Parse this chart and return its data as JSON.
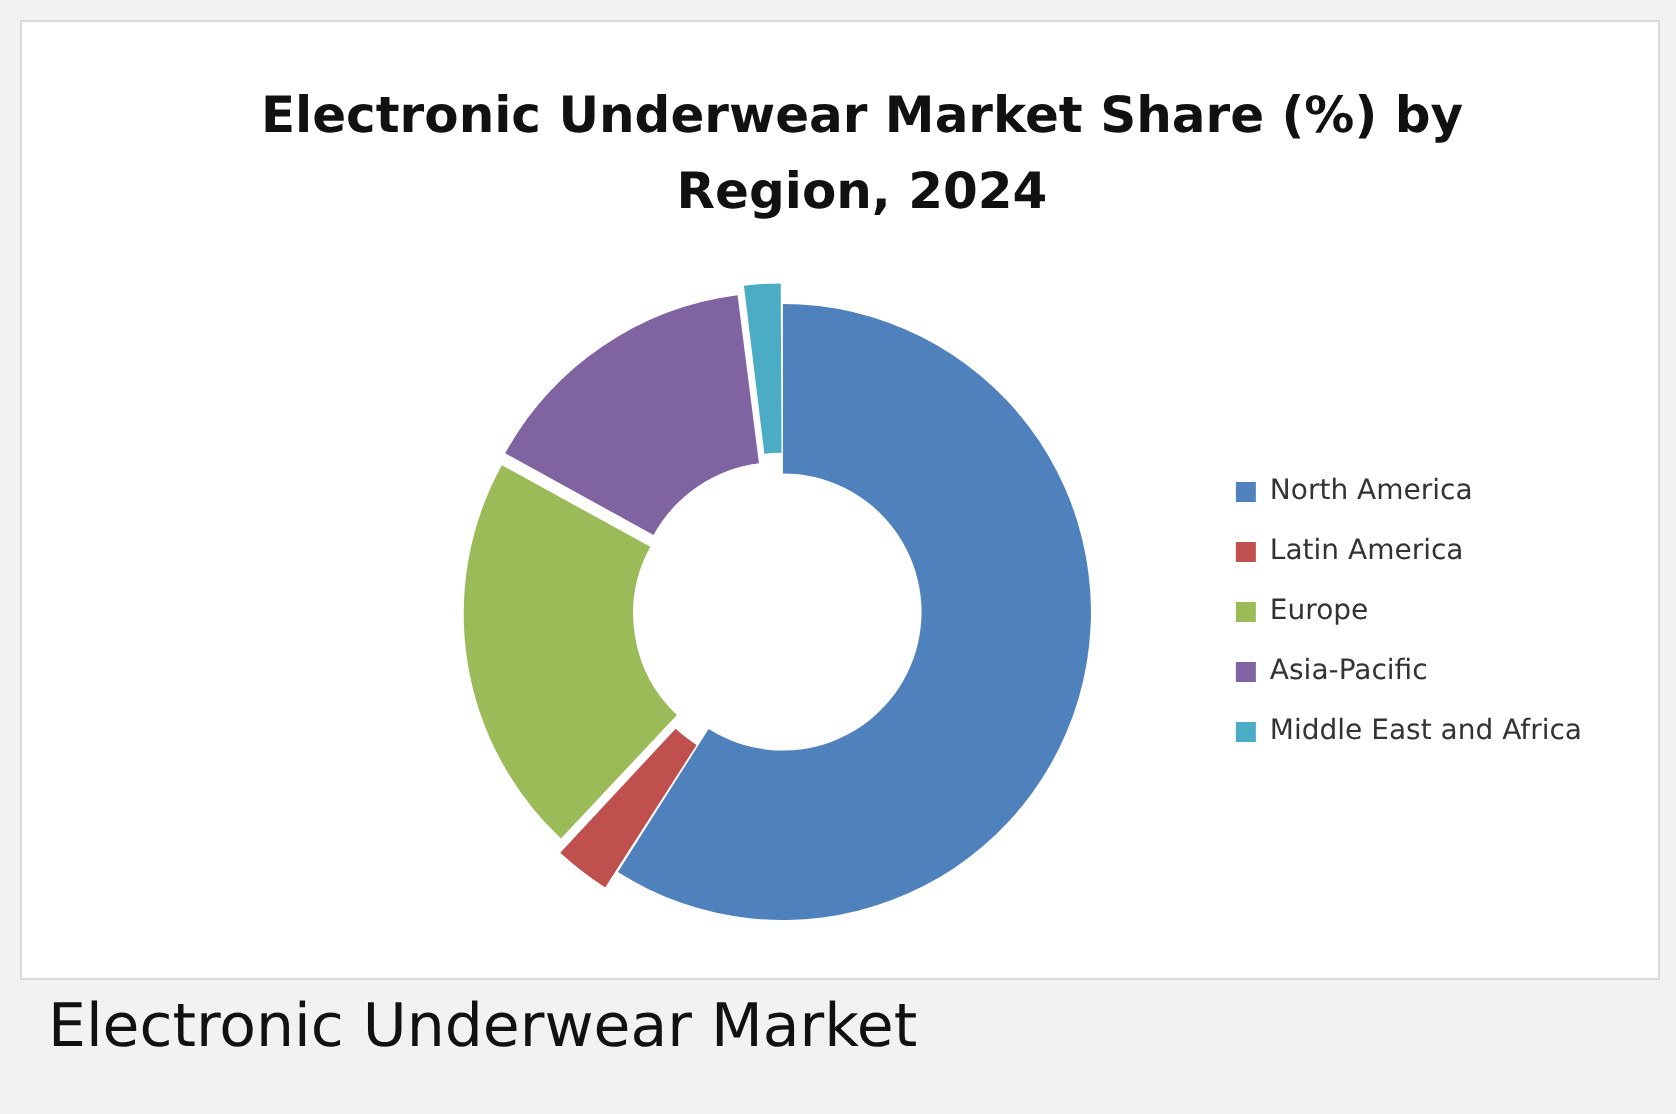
{
  "chart_data": {
    "type": "donut",
    "title": "Electronic Underwear Market Share (%) by Region, 2024",
    "categories": [
      "North America",
      "Latin America",
      "Europe",
      "Asia-Pacific",
      "Middle East and Africa"
    ],
    "values": [
      59,
      3,
      21,
      15,
      2
    ],
    "colors": [
      "#4f81bd",
      "#c0504d",
      "#9bbb59",
      "#8064a2",
      "#4bacc6"
    ],
    "legend": "right",
    "annotations": [
      "Electronic Underwear Market"
    ]
  }
}
